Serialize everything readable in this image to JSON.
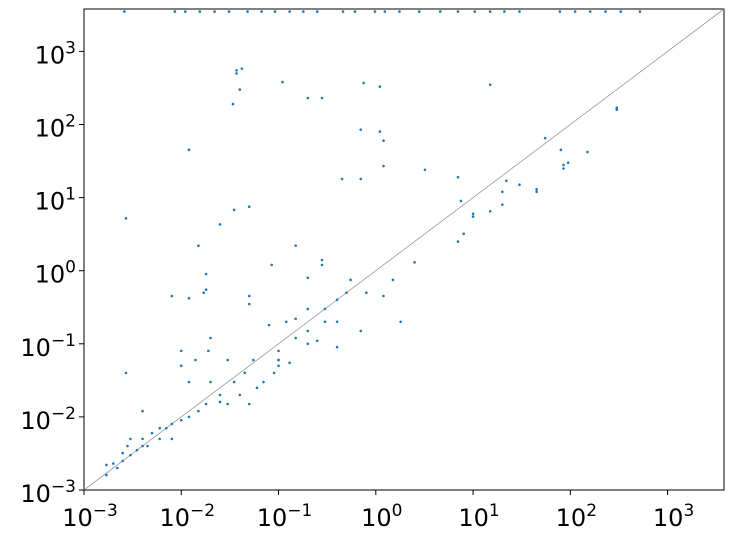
{
  "chart_data": {
    "type": "scatter",
    "color": "#1f77b4",
    "log_x": true,
    "log_y": true,
    "identity_line": true,
    "identity_color": "#999999",
    "xlim": [
      0.001,
      3800
    ],
    "ylim": [
      0.001,
      3800
    ],
    "xticks": [
      {
        "value": 0.001,
        "label": "10",
        "exponent": "−3"
      },
      {
        "value": 0.01,
        "label": "10",
        "exponent": "−2"
      },
      {
        "value": 0.1,
        "label": "10",
        "exponent": "−1"
      },
      {
        "value": 1,
        "label": "10",
        "exponent": "0"
      },
      {
        "value": 10,
        "label": "10",
        "exponent": "1"
      },
      {
        "value": 100,
        "label": "10",
        "exponent": "2"
      },
      {
        "value": 1000,
        "label": "10",
        "exponent": "3"
      }
    ],
    "yticks": [
      {
        "value": 0.001,
        "label": "10",
        "exponent": "−3"
      },
      {
        "value": 0.01,
        "label": "10",
        "exponent": "−2"
      },
      {
        "value": 0.1,
        "label": "10",
        "exponent": "−1"
      },
      {
        "value": 1,
        "label": "10",
        "exponent": "0"
      },
      {
        "value": 10,
        "label": "10",
        "exponent": "1"
      },
      {
        "value": 100,
        "label": "10",
        "exponent": "2"
      },
      {
        "value": 1000,
        "label": "10",
        "exponent": "3"
      }
    ],
    "x": [
      0.0026,
      0.0086,
      0.011,
      0.0155,
      0.022,
      0.031,
      0.048,
      0.067,
      0.092,
      0.13,
      0.18,
      0.25,
      0.46,
      0.61,
      0.98,
      1.24,
      1.75,
      2.8,
      4.6,
      7.0,
      10.4,
      15,
      21,
      30,
      78,
      112,
      160,
      230,
      330,
      520,
      0.0027,
      0.0027,
      0.012,
      0.037,
      0.037,
      0.04,
      0.042,
      0.034,
      0.11,
      0.2,
      0.28,
      0.75,
      1.1,
      15,
      0.7,
      1.1,
      1.2,
      1.2,
      0.7,
      0.45,
      3.2,
      7,
      7.5,
      10,
      10,
      15,
      20,
      20,
      22,
      30,
      45,
      45,
      55,
      80,
      85,
      85,
      95,
      150,
      300,
      300,
      7,
      8,
      2.5,
      1.5,
      0.55,
      0.15,
      0.085,
      0.2,
      0.28,
      0.28,
      0.015,
      0.025,
      0.035,
      0.05,
      0.008,
      0.012,
      0.017,
      0.018,
      0.018,
      0.05,
      0.05,
      0.08,
      0.12,
      0.15,
      0.2,
      0.3,
      0.4,
      0.5,
      0.8,
      1.2,
      1.8,
      0.7,
      0.3,
      0.2,
      0.15,
      0.1,
      0.1,
      0.2,
      0.25,
      0.4,
      0.055,
      0.045,
      0.035,
      0.03,
      0.02,
      0.019,
      0.014,
      0.01,
      0.01,
      0.012,
      0.02,
      0.018,
      0.025,
      0.04,
      0.05,
      0.07,
      0.09,
      0.1,
      0.06,
      0.008,
      0.007,
      0.008,
      0.01,
      0.012,
      0.015,
      0.006,
      0.005,
      0.004,
      0.004,
      0.004,
      0.0035,
      0.003,
      0.0028,
      0.0025,
      0.0022,
      0.0017,
      0.0017,
      0.002,
      0.0025,
      0.003,
      0.0045,
      0.006,
      0.025,
      0.03,
      0.1,
      0.13,
      0.4
    ],
    "values": [
      3500,
      3500,
      3500,
      3500,
      3500,
      3500,
      3500,
      3500,
      3500,
      3500,
      3500,
      3500,
      3500,
      3500,
      3500,
      3500,
      3500,
      3500,
      3500,
      3500,
      3500,
      3500,
      3500,
      3500,
      3500,
      3500,
      3500,
      3500,
      3500,
      3500,
      5.2,
      0.04,
      45,
      550,
      500,
      300,
      580,
      190,
      380,
      230,
      230,
      370,
      330,
      350,
      85,
      80,
      60,
      27,
      18,
      18,
      24,
      19,
      9,
      6,
      5.5,
      6.5,
      8,
      12,
      17,
      15,
      13,
      12,
      65,
      45,
      28,
      25,
      30,
      42,
      170,
      160,
      2.5,
      3.2,
      1.3,
      0.75,
      0.75,
      2.2,
      1.2,
      0.8,
      1.4,
      1.2,
      2.2,
      4.3,
      6.8,
      7.5,
      0.45,
      0.42,
      0.5,
      0.9,
      0.55,
      0.45,
      0.35,
      0.18,
      0.2,
      0.22,
      0.3,
      0.3,
      0.4,
      0.5,
      0.5,
      0.45,
      0.2,
      0.15,
      0.2,
      0.15,
      0.12,
      0.08,
      0.06,
      0.1,
      0.11,
      0.09,
      0.06,
      0.04,
      0.03,
      0.06,
      0.12,
      0.08,
      0.06,
      0.08,
      0.05,
      0.03,
      0.03,
      0.015,
      0.02,
      0.02,
      0.015,
      0.03,
      0.04,
      0.05,
      0.025,
      0.008,
      0.007,
      0.005,
      0.009,
      0.01,
      0.012,
      0.007,
      0.006,
      0.005,
      0.012,
      0.004,
      0.0035,
      0.003,
      0.004,
      0.0025,
      0.002,
      0.0016,
      0.0022,
      0.0023,
      0.0032,
      0.005,
      0.004,
      0.005,
      0.016,
      0.015,
      0.06,
      0.055,
      0.2
    ]
  }
}
